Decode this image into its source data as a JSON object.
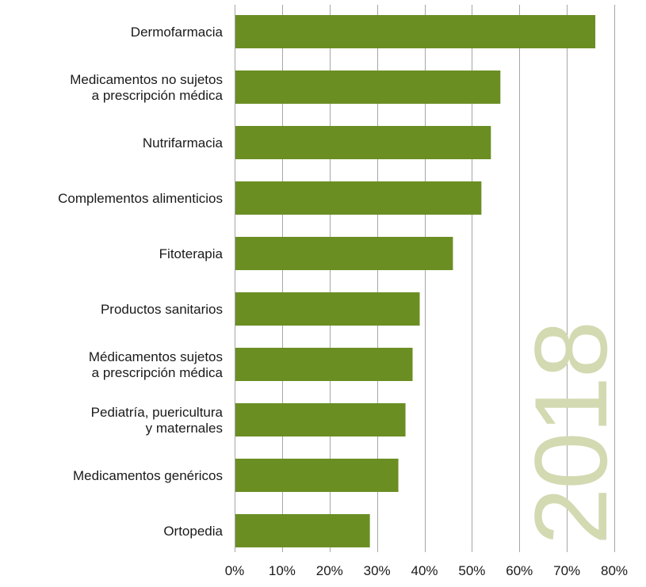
{
  "chart_data": {
    "type": "bar",
    "orientation": "horizontal",
    "categories": [
      [
        "Dermofarmacia"
      ],
      [
        "Medicamentos no sujetos",
        "a prescripción médica"
      ],
      [
        "Nutrifarmacia"
      ],
      [
        "Complementos alimenticios"
      ],
      [
        "Fitoterapia"
      ],
      [
        "Productos sanitarios"
      ],
      [
        "Médicamentos sujetos",
        "a prescripción médica"
      ],
      [
        "Pediatría, puericultura",
        "y maternales"
      ],
      [
        "Medicamentos genéricos"
      ],
      [
        "Ortopedia"
      ]
    ],
    "values": [
      76,
      56,
      54,
      52,
      46,
      39,
      37.5,
      36,
      34.5,
      28.5
    ],
    "xlim": [
      0,
      80
    ],
    "xticks": [
      0,
      10,
      20,
      30,
      40,
      50,
      60,
      70,
      80
    ],
    "xtick_labels": [
      "0%",
      "10%",
      "20%",
      "30%",
      "40%",
      "50%",
      "60%",
      "70%",
      "80%"
    ],
    "grid": "vertical",
    "bar_color": "#6b8e23",
    "gridline_color": "#a6a6a6"
  },
  "watermark": {
    "text": "2018",
    "color": "#d3d9b1"
  }
}
